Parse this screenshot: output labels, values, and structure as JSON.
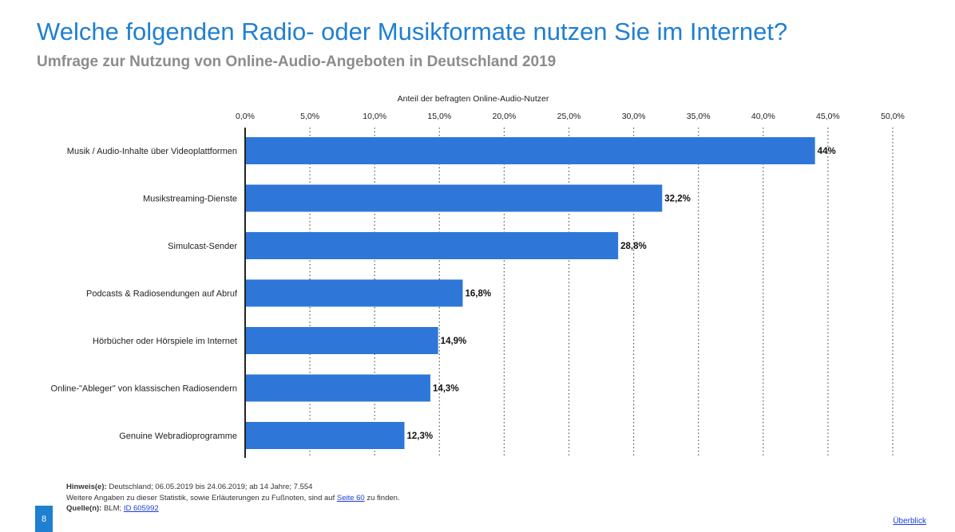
{
  "header": {
    "title": "Welche folgenden Radio- oder Musikformate nutzen Sie im Internet?",
    "subtitle": "Umfrage zur Nutzung von Online-Audio-Angeboten in Deutschland 2019"
  },
  "chart_data": {
    "type": "bar",
    "orientation": "horizontal",
    "xlabel": "Anteil der befragten Online-Audio-Nutzer",
    "xlim": [
      0,
      50
    ],
    "xticks": [
      "0,0%",
      "5,0%",
      "10,0%",
      "15,0%",
      "20,0%",
      "25,0%",
      "30,0%",
      "35,0%",
      "40,0%",
      "45,0%",
      "50,0%"
    ],
    "categories": [
      "Musik / Audio-Inhalte über Videoplattformen",
      "Musikstreaming-Dienste",
      "Simulcast-Sender",
      "Podcasts & Radiosendungen auf Abruf",
      "Hörbücher oder Hörspiele im Internet",
      "Online-\"Ableger\" von klassischen Radiosendern",
      "Genuine Webradioprogramme"
    ],
    "values": [
      44,
      32.2,
      28.8,
      16.8,
      14.9,
      14.3,
      12.3
    ],
    "value_labels": [
      "44%",
      "32,2%",
      "28,8%",
      "16,8%",
      "14,9%",
      "14,3%",
      "12,3%"
    ],
    "grid": "vertical-dotted",
    "legend": "none",
    "bar_color": "#2e77d9"
  },
  "footer": {
    "hint_label": "Hinweis(e):",
    "hint_text": "Deutschland; 06.05.2019 bis 24.06.2019; ab 14 Jahre; 7.554",
    "more_info_pre": "Weitere Angaben zu dieser Statistik, sowie Erläuterungen zu Fußnoten, sind auf",
    "more_info_link": "Seite 60",
    "more_info_post": "zu finden.",
    "source_label": "Quelle(n):",
    "source_text": "BLM;",
    "source_link": "ID 605992"
  },
  "page_number": "8",
  "overview_link": "Überblick"
}
